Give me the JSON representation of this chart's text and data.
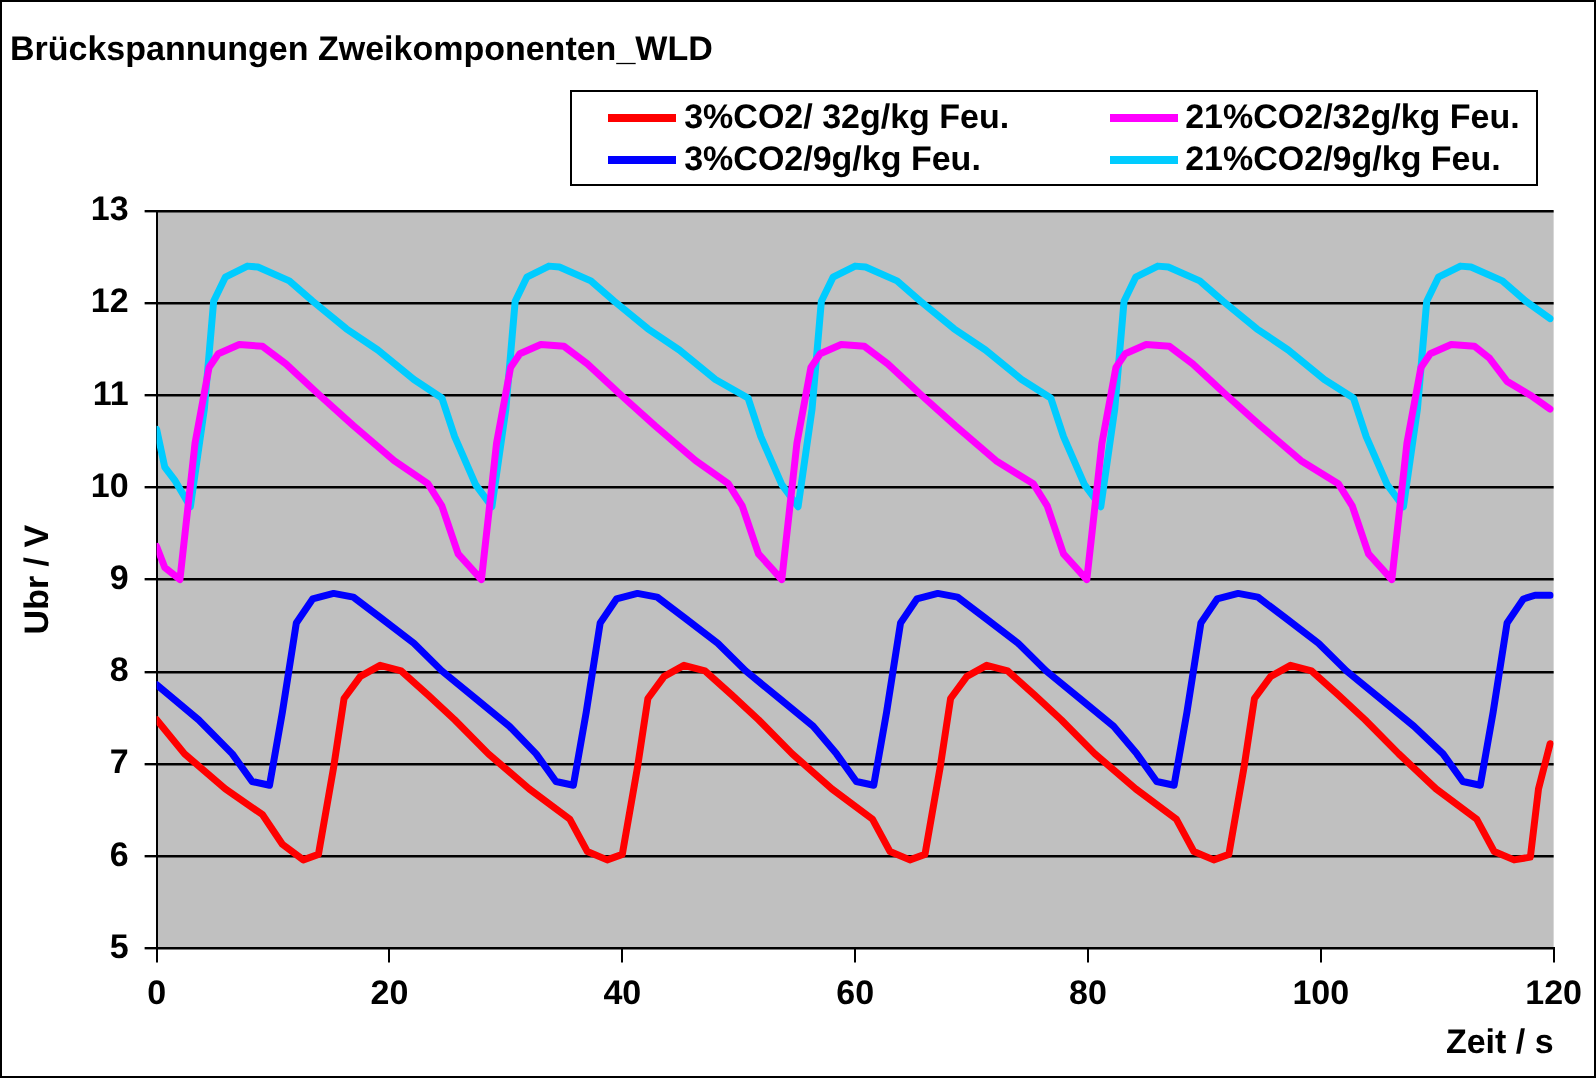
{
  "chart_data": {
    "type": "line",
    "title": "Brückspannungen Zweikomponenten_WLD",
    "xlabel": "Zeit / s",
    "ylabel": "Ubr / V",
    "xlim": [
      0,
      120
    ],
    "xticks": [
      0,
      20,
      40,
      60,
      80,
      100,
      120
    ],
    "ylim": [
      5,
      13
    ],
    "yticks": [
      5,
      6,
      7,
      8,
      9,
      10,
      11,
      12,
      13
    ],
    "grid": "y",
    "legend": "top right",
    "marker": "none",
    "line_style": "solid",
    "series": [
      {
        "name": "3%CO2/ 32g/kg Feu.",
        "color": "#ff0000",
        "x": [
          0,
          2.4,
          5.9,
          9.1,
          10.8,
          12.6,
          13.9,
          15.2,
          16.1,
          17.5,
          19.2,
          21.0,
          23.3,
          25.6,
          28.5,
          32.0,
          35.5,
          37.0,
          38.7,
          40.0,
          41.3,
          42.2,
          43.6,
          45.3,
          47.1,
          49.4,
          51.7,
          54.6,
          58.0,
          61.5,
          63.0,
          64.7,
          66.0,
          67.3,
          68.2,
          69.6,
          71.3,
          73.1,
          75.4,
          77.7,
          80.6,
          84.1,
          87.6,
          89.1,
          90.8,
          92.1,
          93.4,
          94.3,
          95.7,
          97.4,
          99.2,
          101.5,
          103.8,
          106.7,
          109.9,
          113.4,
          114.9,
          116.6,
          118.0,
          118.7,
          119.7
        ],
        "values": [
          7.48,
          7.11,
          6.73,
          6.45,
          6.13,
          5.96,
          6.02,
          6.96,
          7.71,
          7.95,
          8.07,
          8.01,
          7.75,
          7.48,
          7.11,
          6.73,
          6.4,
          6.05,
          5.96,
          6.02,
          6.96,
          7.71,
          7.95,
          8.07,
          8.01,
          7.75,
          7.48,
          7.11,
          6.73,
          6.4,
          6.05,
          5.96,
          6.02,
          6.96,
          7.71,
          7.95,
          8.07,
          8.01,
          7.75,
          7.48,
          7.11,
          6.73,
          6.4,
          6.05,
          5.96,
          6.02,
          6.96,
          7.71,
          7.95,
          8.07,
          8.01,
          7.75,
          7.48,
          7.11,
          6.73,
          6.4,
          6.05,
          5.96,
          5.99,
          6.73,
          7.22
        ]
      },
      {
        "name": "21%CO2/32g/kg Feu.",
        "color": "#ff00ff",
        "x": [
          0,
          0.7,
          2.0,
          3.3,
          4.5,
          5.3,
          7.1,
          9.1,
          11.1,
          14.0,
          16.9,
          20.4,
          23.3,
          24.5,
          25.9,
          27.9,
          29.2,
          30.4,
          31.2,
          33.0,
          35.0,
          37.0,
          39.9,
          42.8,
          46.3,
          49.1,
          50.3,
          51.7,
          53.7,
          55.0,
          56.2,
          57.0,
          58.8,
          60.8,
          62.8,
          65.7,
          68.6,
          72.1,
          75.3,
          76.5,
          77.9,
          79.9,
          81.2,
          82.4,
          83.2,
          85.0,
          87.0,
          89.0,
          91.9,
          94.8,
          98.3,
          101.5,
          102.7,
          104.1,
          106.1,
          107.4,
          108.6,
          109.4,
          111.2,
          113.2,
          114.5,
          116.0,
          118.0,
          119.7
        ],
        "values": [
          9.36,
          9.13,
          9.0,
          10.48,
          11.3,
          11.45,
          11.55,
          11.53,
          11.34,
          11.0,
          10.67,
          10.29,
          10.04,
          9.8,
          9.28,
          9.0,
          10.48,
          11.3,
          11.45,
          11.55,
          11.53,
          11.34,
          11.0,
          10.67,
          10.29,
          10.04,
          9.8,
          9.28,
          9.0,
          10.48,
          11.3,
          11.45,
          11.55,
          11.53,
          11.34,
          11.0,
          10.67,
          10.29,
          10.04,
          9.8,
          9.28,
          9.0,
          10.48,
          11.3,
          11.45,
          11.55,
          11.53,
          11.34,
          11.0,
          10.67,
          10.29,
          10.04,
          9.8,
          9.28,
          9.0,
          10.48,
          11.3,
          11.45,
          11.55,
          11.53,
          11.4,
          11.15,
          11.0,
          10.85
        ]
      },
      {
        "name": "3%CO2/9g/kg Feu.",
        "color": "#0000ff",
        "x": [
          0,
          3.6,
          6.5,
          8.2,
          9.7,
          10.8,
          12.0,
          13.4,
          15.2,
          16.9,
          19.2,
          22.1,
          24.5,
          27.4,
          30.3,
          32.6,
          34.3,
          35.8,
          36.9,
          38.1,
          39.5,
          41.3,
          43.0,
          45.3,
          48.2,
          50.6,
          53.5,
          56.4,
          58.4,
          60.1,
          61.6,
          62.7,
          63.9,
          65.3,
          67.1,
          68.8,
          71.1,
          74.0,
          76.4,
          79.3,
          82.2,
          84.2,
          85.9,
          87.4,
          88.5,
          89.7,
          91.1,
          92.9,
          94.6,
          96.9,
          99.8,
          102.2,
          105.1,
          108.0,
          110.5,
          112.2,
          113.7,
          114.8,
          116.0,
          117.4,
          118.4,
          119.7
        ],
        "values": [
          7.86,
          7.48,
          7.11,
          6.81,
          6.77,
          7.56,
          8.53,
          8.79,
          8.85,
          8.81,
          8.59,
          8.31,
          8.01,
          7.71,
          7.41,
          7.11,
          6.81,
          6.77,
          7.56,
          8.53,
          8.79,
          8.85,
          8.81,
          8.59,
          8.31,
          8.01,
          7.71,
          7.41,
          7.11,
          6.81,
          6.77,
          7.56,
          8.53,
          8.79,
          8.85,
          8.81,
          8.59,
          8.31,
          8.01,
          7.71,
          7.41,
          7.11,
          6.81,
          6.77,
          7.56,
          8.53,
          8.79,
          8.85,
          8.81,
          8.59,
          8.31,
          8.01,
          7.71,
          7.41,
          7.11,
          6.81,
          6.77,
          7.56,
          8.53,
          8.79,
          8.83,
          8.83
        ]
      },
      {
        "name": "21%CO2/9g/kg Feu.",
        "color": "#00ccff",
        "x": [
          0,
          0.7,
          1.6,
          2.9,
          4.1,
          4.9,
          5.9,
          7.8,
          8.7,
          11.4,
          13.4,
          16.3,
          19.0,
          22.1,
          24.5,
          25.6,
          27.4,
          28.8,
          30.0,
          30.8,
          31.8,
          33.7,
          34.6,
          37.3,
          39.3,
          42.2,
          44.9,
          48.0,
          50.8,
          51.9,
          53.7,
          55.1,
          56.3,
          57.1,
          58.1,
          60.0,
          60.9,
          63.6,
          65.6,
          68.5,
          71.2,
          74.3,
          76.8,
          77.9,
          79.7,
          81.1,
          82.3,
          83.1,
          84.1,
          86.0,
          86.9,
          89.6,
          91.6,
          94.5,
          97.2,
          100.3,
          102.8,
          103.9,
          105.7,
          107.1,
          108.3,
          109.1,
          110.1,
          112.0,
          112.9,
          115.6,
          117.6,
          119.7
        ],
        "values": [
          10.63,
          10.22,
          10.07,
          9.79,
          10.85,
          12.02,
          12.28,
          12.4,
          12.39,
          12.24,
          12.02,
          11.72,
          11.49,
          11.17,
          10.97,
          10.55,
          10.03,
          9.79,
          10.85,
          12.02,
          12.28,
          12.4,
          12.39,
          12.24,
          12.02,
          11.72,
          11.49,
          11.17,
          10.97,
          10.55,
          10.03,
          9.79,
          10.85,
          12.02,
          12.28,
          12.4,
          12.39,
          12.24,
          12.02,
          11.72,
          11.49,
          11.17,
          10.97,
          10.55,
          10.03,
          9.79,
          10.85,
          12.02,
          12.28,
          12.4,
          12.39,
          12.24,
          12.02,
          11.72,
          11.49,
          11.17,
          10.97,
          10.55,
          10.03,
          9.79,
          10.85,
          12.02,
          12.28,
          12.4,
          12.39,
          12.24,
          12.02,
          11.83
        ]
      }
    ]
  }
}
